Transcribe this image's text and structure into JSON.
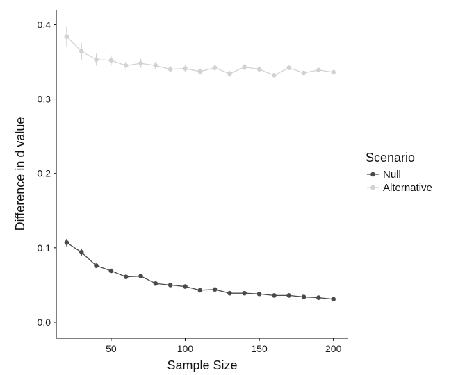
{
  "chart_data": {
    "type": "line",
    "title": "",
    "xlabel": "Sample Size",
    "ylabel": "Difference in d value",
    "xlim": [
      13,
      210
    ],
    "ylim": [
      -0.0215,
      0.42
    ],
    "xticks": [
      50,
      100,
      150,
      200
    ],
    "xtick_labels": [
      "50",
      "100",
      "150",
      "200"
    ],
    "yticks": [
      0.0,
      0.1,
      0.2,
      0.3,
      0.4
    ],
    "ytick_labels": [
      "0.0",
      "0.1",
      "0.2",
      "0.3",
      "0.4"
    ],
    "grid": false,
    "legend": {
      "title": "Scenario",
      "placement": "right"
    },
    "x": [
      20,
      30,
      40,
      50,
      60,
      70,
      80,
      90,
      100,
      110,
      120,
      130,
      140,
      150,
      160,
      170,
      180,
      190,
      200
    ],
    "series": [
      {
        "name": "Null",
        "color": "#4a4a4a",
        "values": [
          0.107,
          0.094,
          0.076,
          0.069,
          0.061,
          0.062,
          0.052,
          0.05,
          0.048,
          0.043,
          0.044,
          0.039,
          0.039,
          0.038,
          0.036,
          0.036,
          0.034,
          0.033,
          0.031
        ],
        "errors": [
          0.005,
          0.005,
          0.003,
          0.003,
          0.002,
          0.002,
          0.002,
          0.002,
          0.002,
          0.002,
          0.002,
          0.002,
          0.002,
          0.002,
          0.002,
          0.002,
          0.002,
          0.002,
          0.002
        ]
      },
      {
        "name": "Alternative",
        "color": "#d2d2d2",
        "values": [
          0.384,
          0.364,
          0.353,
          0.352,
          0.345,
          0.348,
          0.345,
          0.34,
          0.341,
          0.337,
          0.342,
          0.334,
          0.343,
          0.34,
          0.332,
          0.342,
          0.335,
          0.339,
          0.336
        ],
        "errors": [
          0.013,
          0.011,
          0.008,
          0.007,
          0.006,
          0.006,
          0.005,
          0.004,
          0.004,
          0.004,
          0.004,
          0.004,
          0.004,
          0.003,
          0.003,
          0.003,
          0.003,
          0.003,
          0.003
        ]
      }
    ]
  }
}
